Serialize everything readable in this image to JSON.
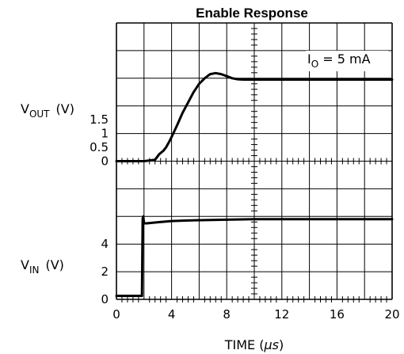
{
  "chart_data": {
    "type": "line",
    "title": "Enable Response",
    "x_axis": {
      "label_main": "TIME (",
      "label_unit": "μs",
      "label_close": ")",
      "range": [
        0,
        20
      ],
      "ticks": [
        "0",
        "4",
        "8",
        "12",
        "16",
        "20"
      ]
    },
    "panels": [
      {
        "name": "vout",
        "ylabel_main": "V",
        "ylabel_sub": "OUT",
        "ylabel_unit": "(V)",
        "range": [
          0,
          2
        ],
        "ticks": [
          "0",
          "0.5",
          "1",
          "1.5"
        ],
        "annotation_main": "I",
        "annotation_sub": "O",
        "annotation_rest": " = 5 mA",
        "series": {
          "x": [
            0,
            1,
            2,
            2.8,
            3.1,
            3.4,
            3.6,
            3.8,
            4.0,
            4.4,
            4.8,
            5.2,
            5.6,
            6.0,
            6.4,
            6.8,
            7.2,
            7.6,
            8.0,
            8.4,
            8.8,
            9.2,
            9.6,
            10.0,
            11,
            12,
            14,
            16,
            18,
            20
          ],
          "y": [
            0,
            0,
            0,
            0.02,
            0.1,
            0.15,
            0.2,
            0.27,
            0.35,
            0.52,
            0.7,
            0.85,
            1.0,
            1.12,
            1.2,
            1.26,
            1.275,
            1.26,
            1.23,
            1.2,
            1.185,
            1.18,
            1.18,
            1.18,
            1.18,
            1.18,
            1.18,
            1.18,
            1.18,
            1.18
          ]
        }
      },
      {
        "name": "vin",
        "ylabel_main": "V",
        "ylabel_sub": "IN",
        "ylabel_unit": "(V)",
        "range": [
          0,
          6
        ],
        "ticks": [
          "0",
          "2",
          "4"
        ],
        "series": {
          "x": [
            0,
            1.0,
            1.85,
            1.9,
            1.95,
            2.0,
            2.2,
            3,
            4,
            5,
            6,
            8,
            10,
            12,
            14,
            16,
            18,
            20
          ],
          "y": [
            0.15,
            0.15,
            0.15,
            3.5,
            3.6,
            3.3,
            3.3,
            3.35,
            3.4,
            3.42,
            3.44,
            3.46,
            3.48,
            3.48,
            3.48,
            3.48,
            3.48,
            3.48
          ]
        }
      }
    ]
  }
}
